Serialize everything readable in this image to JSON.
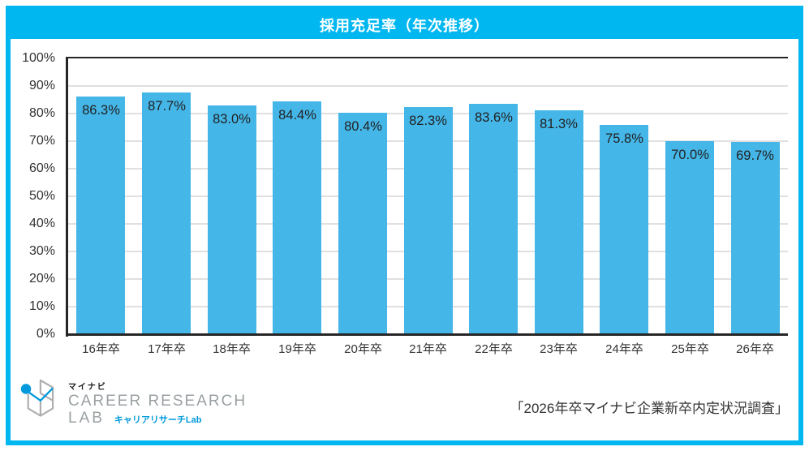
{
  "title": "採用充足率（年次推移）",
  "source": "「2026年卒マイナビ企業新卒内定状況調査」",
  "logo": {
    "brand_small": "マイナビ",
    "brand_line1": "CAREER RESEARCH",
    "brand_line2": "LAB",
    "brand_jp": "キャリアリサーチLab"
  },
  "colors": {
    "accent_cyan": "#00B7F0",
    "bar_blue": "#44B6E8",
    "grid": "#E0E0E0",
    "axis_line": "#262626",
    "value_label": "#222222",
    "logo_gray": "#9aa0a3",
    "logo_cyan": "#0099DB"
  },
  "chart_data": {
    "type": "bar",
    "title": "採用充足率（年次推移）",
    "categories": [
      "16年卒",
      "17年卒",
      "18年卒",
      "19年卒",
      "20年卒",
      "21年卒",
      "22年卒",
      "23年卒",
      "24年卒",
      "25年卒",
      "26年卒"
    ],
    "values": [
      86.3,
      87.7,
      83.0,
      84.4,
      80.4,
      82.3,
      83.6,
      81.3,
      75.8,
      70.0,
      69.7
    ],
    "value_labels": [
      "86.3%",
      "87.7%",
      "83.0%",
      "84.4%",
      "80.4%",
      "82.3%",
      "83.6%",
      "81.3%",
      "75.8%",
      "70.0%",
      "69.7%"
    ],
    "y_ticks": [
      "100%",
      "90%",
      "80%",
      "70%",
      "60%",
      "50%",
      "40%",
      "30%",
      "20%",
      "10%",
      "0%"
    ],
    "ylim": [
      0,
      100
    ],
    "grid": true,
    "legend": false,
    "xlabel": "",
    "ylabel": "",
    "value_label_position": "inside-top"
  }
}
